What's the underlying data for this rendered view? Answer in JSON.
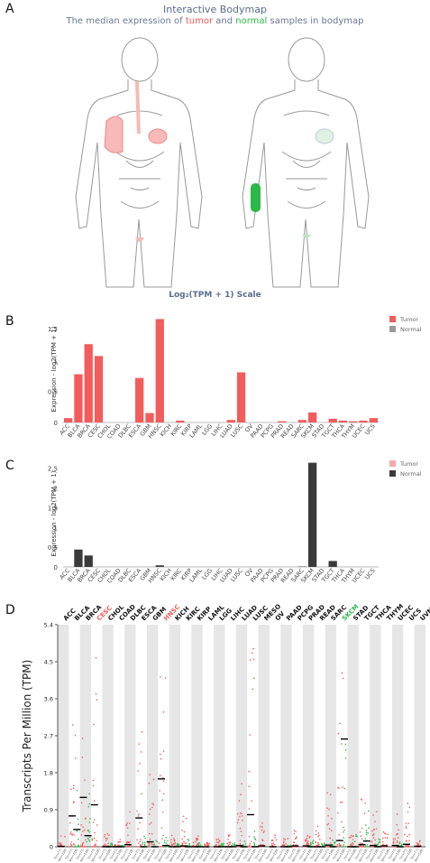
{
  "panels": [
    "A",
    "B",
    "C",
    "D"
  ],
  "bodymap": {
    "title": "Interactive Bodymap",
    "subtitle_parts": [
      "The median expression of ",
      "tumor",
      " and ",
      "normal",
      " samples in bodymap"
    ]
  },
  "scale_label": "Log₂(TPM + 1) Scale",
  "colors": {
    "tumor": "#f25c5c",
    "normal": "#3a3a3a",
    "tumor_light": "#f7a8a8",
    "normal_light": "#9a9a9a",
    "green": "#2db84a"
  },
  "chart_data": [
    {
      "id": "B",
      "type": "bar",
      "ylabel": "Expression - log2(TPM + 1)",
      "ylim": [
        0,
        1.7
      ],
      "yticks": [
        0,
        0.5,
        1,
        1.5
      ],
      "legend": [
        {
          "name": "Tumor",
          "color": "#f25c5c"
        },
        {
          "name": "Normal",
          "color": "#9a9a9a"
        }
      ],
      "legend_position": "top-right",
      "categories": [
        "ACC",
        "BLCA",
        "BRCA",
        "CESC",
        "CHOL",
        "COAD",
        "DLBC",
        "ESCA",
        "GBM",
        "HNSC",
        "KICH",
        "KIRC",
        "KIRP",
        "LAML",
        "LGG",
        "LIHC",
        "LUAD",
        "LUSC",
        "OV",
        "PAAD",
        "PCPG",
        "PRAD",
        "READ",
        "SARC",
        "SKCM",
        "STAD",
        "TGCT",
        "THCA",
        "THYM",
        "UCEC",
        "UCS"
      ],
      "series": [
        {
          "name": "Tumor",
          "values": [
            0.07,
            0.77,
            1.25,
            1.06,
            0,
            0,
            0,
            0.71,
            0.15,
            1.65,
            0,
            0.03,
            0,
            0,
            0,
            0,
            0.04,
            0.8,
            0,
            0,
            0,
            0.02,
            0,
            0.04,
            0.16,
            0,
            0.06,
            0.03,
            0.02,
            0.03,
            0.07
          ]
        }
      ]
    },
    {
      "id": "C",
      "type": "bar",
      "ylabel": "Expression - log2(TPM + 1)",
      "ylim": [
        0,
        2.7
      ],
      "yticks": [
        0,
        0.5,
        1,
        1.5,
        2,
        2.5
      ],
      "legend": [
        {
          "name": "Tumor",
          "color": "#f7a8a8"
        },
        {
          "name": "Normal",
          "color": "#3a3a3a"
        }
      ],
      "legend_position": "top-right",
      "categories": [
        "ACC",
        "BLCA",
        "BRCA",
        "CESC",
        "CHOL",
        "COAD",
        "DLBC",
        "ESCA",
        "GBM",
        "HNSC",
        "KICH",
        "KIRC",
        "KIRP",
        "LAML",
        "LGG",
        "LIHC",
        "LUAD",
        "LUSC",
        "OV",
        "PAAD",
        "PCPG",
        "PRAD",
        "READ",
        "SARC",
        "SKCM",
        "STAD",
        "TGCT",
        "THCA",
        "THYM",
        "UCEC",
        "UCS"
      ],
      "series": [
        {
          "name": "Normal",
          "values": [
            0,
            0.44,
            0.29,
            0,
            0,
            0,
            0,
            0,
            0,
            0.04,
            0,
            0,
            0,
            0,
            0,
            0,
            0,
            0,
            0,
            0,
            0,
            0,
            0,
            0.01,
            2.64,
            0,
            0.15,
            0,
            0,
            0,
            0
          ]
        }
      ]
    },
    {
      "id": "D",
      "type": "scatter",
      "ylabel": "Transcripts Per Million (TPM)",
      "ylim": [
        0,
        5.4
      ],
      "yticks": [
        "0",
        "0.9",
        "1.8",
        "2.7",
        "3.6",
        "4.5",
        "5.4"
      ],
      "categories": [
        "ACC",
        "BLCA",
        "BRCA",
        "CESC",
        "CHOL",
        "COAD",
        "DLBC",
        "ESCA",
        "GBM",
        "HNSC",
        "KICH",
        "KIRC",
        "KIRP",
        "LAML",
        "LGG",
        "LIHC",
        "LUAD",
        "LUSC",
        "MESO",
        "OV",
        "PAAD",
        "PCPG",
        "PRAD",
        "READ",
        "SARC",
        "SKCM",
        "STAD",
        "TGCT",
        "THCA",
        "THYM",
        "UCEC",
        "UCS",
        "UVM"
      ],
      "category_colors": {
        "CESC": "#f25c5c",
        "HNSC": "#f25c5c",
        "SKCM": "#2db84a"
      },
      "tumor_medians": [
        0.01,
        0.75,
        1.2,
        1.02,
        0,
        0,
        0.05,
        0.7,
        0.12,
        1.65,
        0,
        0.02,
        0,
        0,
        0,
        0,
        0.03,
        0.78,
        0.02,
        0,
        0,
        0.02,
        0.02,
        0,
        0.04,
        0.15,
        0,
        0.05,
        0.03,
        0.02,
        0.03,
        0.06,
        0.01
      ],
      "normal_medians": [
        null,
        0.42,
        0.27,
        null,
        0,
        0,
        null,
        0,
        0,
        0.03,
        0,
        0,
        0,
        null,
        0,
        0,
        0,
        0,
        null,
        null,
        0,
        null,
        0,
        0,
        0,
        2.62,
        0,
        0.14,
        0,
        null,
        0,
        null,
        null
      ],
      "tumor_max": [
        0.3,
        3.4,
        4.4,
        5.2,
        0.4,
        0.2,
        1.2,
        3.1,
        1.8,
        4.4,
        0.3,
        0.8,
        0.3,
        0.1,
        0.2,
        0.3,
        1.6,
        5.0,
        0.6,
        0.3,
        0.2,
        0.4,
        0.3,
        0.5,
        1.6,
        4.8,
        0.5,
        1.2,
        0.9,
        0.4,
        0.8,
        1.1,
        0.2
      ],
      "normal_max": [
        null,
        1.9,
        1.4,
        null,
        0.1,
        0.1,
        null,
        0.3,
        0.2,
        0.5,
        0.1,
        0.2,
        0.1,
        null,
        0.1,
        0.1,
        0.2,
        0.5,
        null,
        null,
        0.1,
        null,
        0.2,
        0.1,
        0.2,
        3.8,
        0.3,
        0.9,
        0.2,
        null,
        0.2,
        null,
        null
      ],
      "x_sample_labels": [
        "T(n=77)",
        "N(n=128)"
      ]
    }
  ]
}
